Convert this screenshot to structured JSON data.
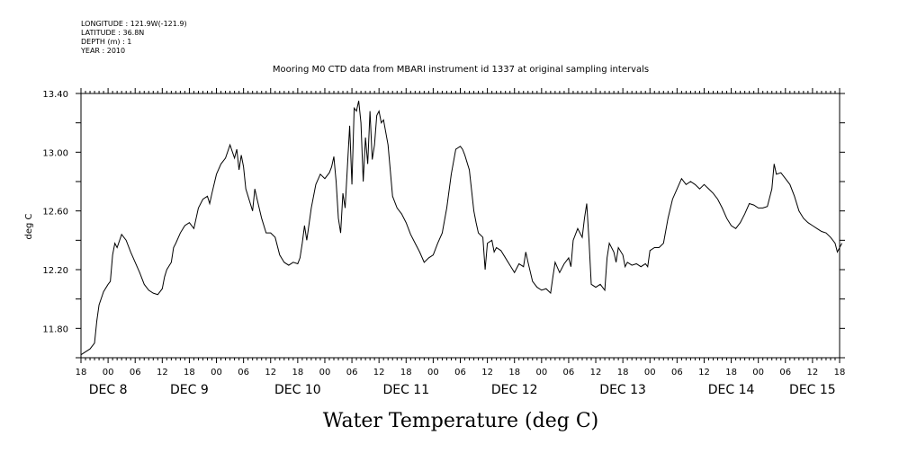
{
  "header": {
    "lines": [
      "LONGITUDE : 121.9W(-121.9)",
      "LATITUDE : 36.8N",
      "DEPTH (m) : 1",
      "YEAR : 2010"
    ]
  },
  "chart_data": {
    "type": "line",
    "title": "Mooring M0 CTD data from MBARI instrument id 1337 at original sampling intervals",
    "xlabel": "Water Temperature (deg C)",
    "ylabel": "deg C",
    "x_unit": "hours since 2010-12-07 18:00",
    "xlim": [
      0,
      168
    ],
    "ylim": [
      11.6,
      13.4
    ],
    "y_ticks": [
      13.4,
      13.0,
      12.6,
      12.2,
      11.8
    ],
    "y_tick_labels": [
      "13.40",
      "13.00",
      "12.60",
      "12.20",
      "11.80"
    ],
    "x_hour_labels": [
      "18",
      "00",
      "06",
      "12",
      "18",
      "00",
      "06",
      "12",
      "18",
      "00",
      "06",
      "12",
      "18",
      "00",
      "06",
      "12",
      "18",
      "00",
      "06",
      "12",
      "18",
      "00",
      "06",
      "12",
      "18",
      "00",
      "06",
      "12",
      "18"
    ],
    "x_day_labels": [
      {
        "label": "DEC  8",
        "hour": 6
      },
      {
        "label": "DEC  9",
        "hour": 24
      },
      {
        "label": "DEC 10",
        "hour": 48
      },
      {
        "label": "DEC 11",
        "hour": 72
      },
      {
        "label": "DEC 12",
        "hour": 96
      },
      {
        "label": "DEC 13",
        "hour": 120
      },
      {
        "label": "DEC 14",
        "hour": 144
      },
      {
        "label": "DEC 15",
        "hour": 162
      }
    ],
    "series": [
      {
        "name": "Water Temperature",
        "points": [
          [
            0,
            11.62
          ],
          [
            1,
            11.64
          ],
          [
            2,
            11.66
          ],
          [
            3,
            11.7
          ],
          [
            3.5,
            11.85
          ],
          [
            4,
            11.96
          ],
          [
            5,
            12.05
          ],
          [
            6,
            12.1
          ],
          [
            6.5,
            12.12
          ],
          [
            7,
            12.3
          ],
          [
            7.5,
            12.38
          ],
          [
            8,
            12.35
          ],
          [
            9,
            12.44
          ],
          [
            10,
            12.4
          ],
          [
            11,
            12.32
          ],
          [
            12,
            12.25
          ],
          [
            13,
            12.18
          ],
          [
            14,
            12.1
          ],
          [
            15,
            12.06
          ],
          [
            16,
            12.04
          ],
          [
            17,
            12.03
          ],
          [
            18,
            12.07
          ],
          [
            18.5,
            12.15
          ],
          [
            19,
            12.2
          ],
          [
            20,
            12.25
          ],
          [
            20.5,
            12.35
          ],
          [
            21,
            12.38
          ],
          [
            22,
            12.45
          ],
          [
            23,
            12.5
          ],
          [
            24,
            12.52
          ],
          [
            25,
            12.48
          ],
          [
            25.5,
            12.55
          ],
          [
            26,
            12.62
          ],
          [
            27,
            12.68
          ],
          [
            28,
            12.7
          ],
          [
            28.5,
            12.65
          ],
          [
            29,
            12.72
          ],
          [
            30,
            12.85
          ],
          [
            31,
            12.92
          ],
          [
            32,
            12.96
          ],
          [
            33,
            13.05
          ],
          [
            34,
            12.96
          ],
          [
            34.5,
            13.02
          ],
          [
            35,
            12.88
          ],
          [
            35.5,
            12.98
          ],
          [
            36,
            12.9
          ],
          [
            36.5,
            12.75
          ],
          [
            37,
            12.7
          ],
          [
            37.5,
            12.65
          ],
          [
            38,
            12.6
          ],
          [
            38.5,
            12.75
          ],
          [
            39,
            12.68
          ],
          [
            40,
            12.55
          ],
          [
            41,
            12.45
          ],
          [
            42,
            12.45
          ],
          [
            43,
            12.42
          ],
          [
            44,
            12.3
          ],
          [
            45,
            12.25
          ],
          [
            46,
            12.23
          ],
          [
            47,
            12.25
          ],
          [
            48,
            12.24
          ],
          [
            48.5,
            12.28
          ],
          [
            49,
            12.38
          ],
          [
            49.5,
            12.5
          ],
          [
            50,
            12.4
          ],
          [
            51,
            12.62
          ],
          [
            52,
            12.78
          ],
          [
            53,
            12.85
          ],
          [
            54,
            12.82
          ],
          [
            55,
            12.86
          ],
          [
            55.5,
            12.9
          ],
          [
            56,
            12.97
          ],
          [
            56.5,
            12.8
          ],
          [
            57,
            12.55
          ],
          [
            57.5,
            12.45
          ],
          [
            58,
            12.72
          ],
          [
            58.5,
            12.62
          ],
          [
            59,
            12.9
          ],
          [
            59.5,
            13.18
          ],
          [
            60,
            12.78
          ],
          [
            60.5,
            13.3
          ],
          [
            61,
            13.28
          ],
          [
            61.5,
            13.35
          ],
          [
            62,
            13.2
          ],
          [
            62.5,
            12.8
          ],
          [
            63,
            13.1
          ],
          [
            63.5,
            12.92
          ],
          [
            64,
            13.28
          ],
          [
            64.5,
            12.95
          ],
          [
            65,
            13.05
          ],
          [
            65.5,
            13.25
          ],
          [
            66,
            13.28
          ],
          [
            66.5,
            13.2
          ],
          [
            67,
            13.22
          ],
          [
            68,
            13.05
          ],
          [
            69,
            12.7
          ],
          [
            70,
            12.62
          ],
          [
            71,
            12.58
          ],
          [
            72,
            12.52
          ],
          [
            73,
            12.44
          ],
          [
            74,
            12.38
          ],
          [
            75,
            12.32
          ],
          [
            76,
            12.25
          ],
          [
            77,
            12.28
          ],
          [
            78,
            12.3
          ],
          [
            79,
            12.38
          ],
          [
            80,
            12.45
          ],
          [
            81,
            12.62
          ],
          [
            82,
            12.85
          ],
          [
            83,
            13.02
          ],
          [
            84,
            13.04
          ],
          [
            84.5,
            13.02
          ],
          [
            85,
            12.98
          ],
          [
            86,
            12.88
          ],
          [
            87,
            12.6
          ],
          [
            87.5,
            12.52
          ],
          [
            88,
            12.45
          ],
          [
            89,
            12.42
          ],
          [
            89.5,
            12.2
          ],
          [
            90,
            12.38
          ],
          [
            91,
            12.4
          ],
          [
            91.5,
            12.32
          ],
          [
            92,
            12.35
          ],
          [
            93,
            12.33
          ],
          [
            94,
            12.28
          ],
          [
            95,
            12.23
          ],
          [
            96,
            12.18
          ],
          [
            97,
            12.24
          ],
          [
            98,
            12.22
          ],
          [
            98.5,
            12.32
          ],
          [
            99,
            12.25
          ],
          [
            100,
            12.12
          ],
          [
            101,
            12.08
          ],
          [
            102,
            12.06
          ],
          [
            103,
            12.07
          ],
          [
            104,
            12.04
          ],
          [
            104.5,
            12.15
          ],
          [
            105,
            12.25
          ],
          [
            106,
            12.18
          ],
          [
            107,
            12.24
          ],
          [
            108,
            12.28
          ],
          [
            108.5,
            12.22
          ],
          [
            109,
            12.4
          ],
          [
            110,
            12.48
          ],
          [
            111,
            12.42
          ],
          [
            111.5,
            12.55
          ],
          [
            112,
            12.65
          ],
          [
            112.5,
            12.4
          ],
          [
            113,
            12.1
          ],
          [
            114,
            12.08
          ],
          [
            115,
            12.1
          ],
          [
            116,
            12.06
          ],
          [
            116.5,
            12.28
          ],
          [
            117,
            12.38
          ],
          [
            118,
            12.32
          ],
          [
            118.5,
            12.25
          ],
          [
            119,
            12.35
          ],
          [
            120,
            12.3
          ],
          [
            120.5,
            12.22
          ],
          [
            121,
            12.25
          ],
          [
            122,
            12.23
          ],
          [
            123,
            12.24
          ],
          [
            124,
            12.22
          ],
          [
            125,
            12.24
          ],
          [
            125.5,
            12.22
          ],
          [
            126,
            12.33
          ],
          [
            127,
            12.35
          ],
          [
            128,
            12.35
          ],
          [
            129,
            12.38
          ],
          [
            130,
            12.55
          ],
          [
            131,
            12.68
          ],
          [
            132,
            12.75
          ],
          [
            133,
            12.82
          ],
          [
            134,
            12.78
          ],
          [
            135,
            12.8
          ],
          [
            136,
            12.78
          ],
          [
            137,
            12.75
          ],
          [
            138,
            12.78
          ],
          [
            139,
            12.75
          ],
          [
            140,
            12.72
          ],
          [
            141,
            12.68
          ],
          [
            142,
            12.62
          ],
          [
            143,
            12.55
          ],
          [
            144,
            12.5
          ],
          [
            145,
            12.48
          ],
          [
            146,
            12.52
          ],
          [
            147,
            12.58
          ],
          [
            148,
            12.65
          ],
          [
            149,
            12.64
          ],
          [
            150,
            12.62
          ],
          [
            151,
            12.62
          ],
          [
            152,
            12.63
          ],
          [
            153,
            12.75
          ],
          [
            153.5,
            12.92
          ],
          [
            154,
            12.85
          ],
          [
            155,
            12.86
          ],
          [
            156,
            12.82
          ],
          [
            157,
            12.78
          ],
          [
            158,
            12.7
          ],
          [
            159,
            12.6
          ],
          [
            160,
            12.55
          ],
          [
            161,
            12.52
          ],
          [
            162,
            12.5
          ],
          [
            163,
            12.48
          ],
          [
            164,
            12.46
          ],
          [
            165,
            12.45
          ],
          [
            166,
            12.42
          ],
          [
            167,
            12.38
          ],
          [
            167.5,
            12.32
          ],
          [
            168,
            12.35
          ],
          [
            168.5,
            12.38
          ]
        ]
      }
    ],
    "line_color": "#000000",
    "grid": false
  }
}
